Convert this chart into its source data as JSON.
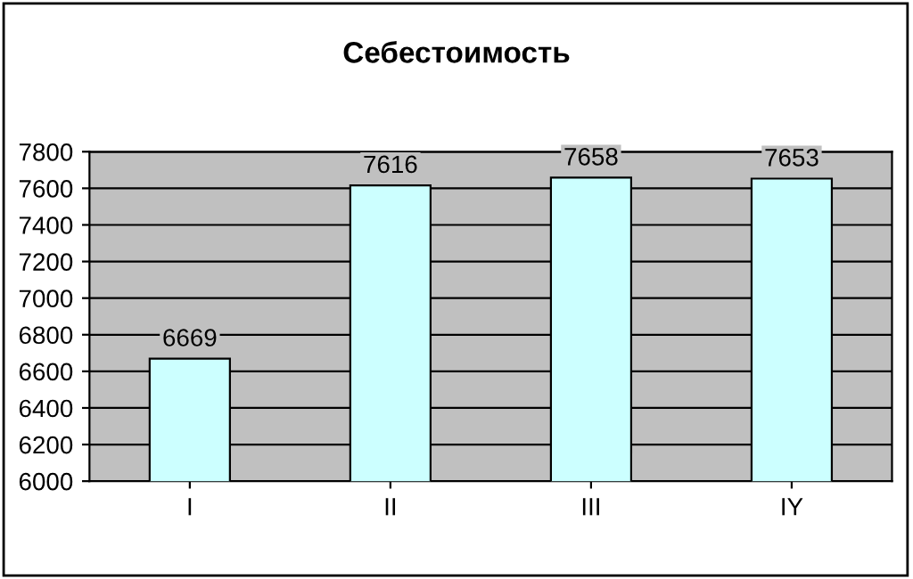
{
  "chart_data": {
    "type": "bar",
    "title": "Себестоимость",
    "categories": [
      "I",
      "II",
      "III",
      "IY"
    ],
    "values": [
      6669,
      7616,
      7658,
      7653
    ],
    "color": "#ccffff",
    "ylim": [
      6000,
      7800
    ],
    "yticks": [
      6000,
      6200,
      6400,
      6600,
      6800,
      7000,
      7200,
      7400,
      7600,
      7800
    ],
    "grid": "y",
    "data_labels": true,
    "legend": false
  }
}
